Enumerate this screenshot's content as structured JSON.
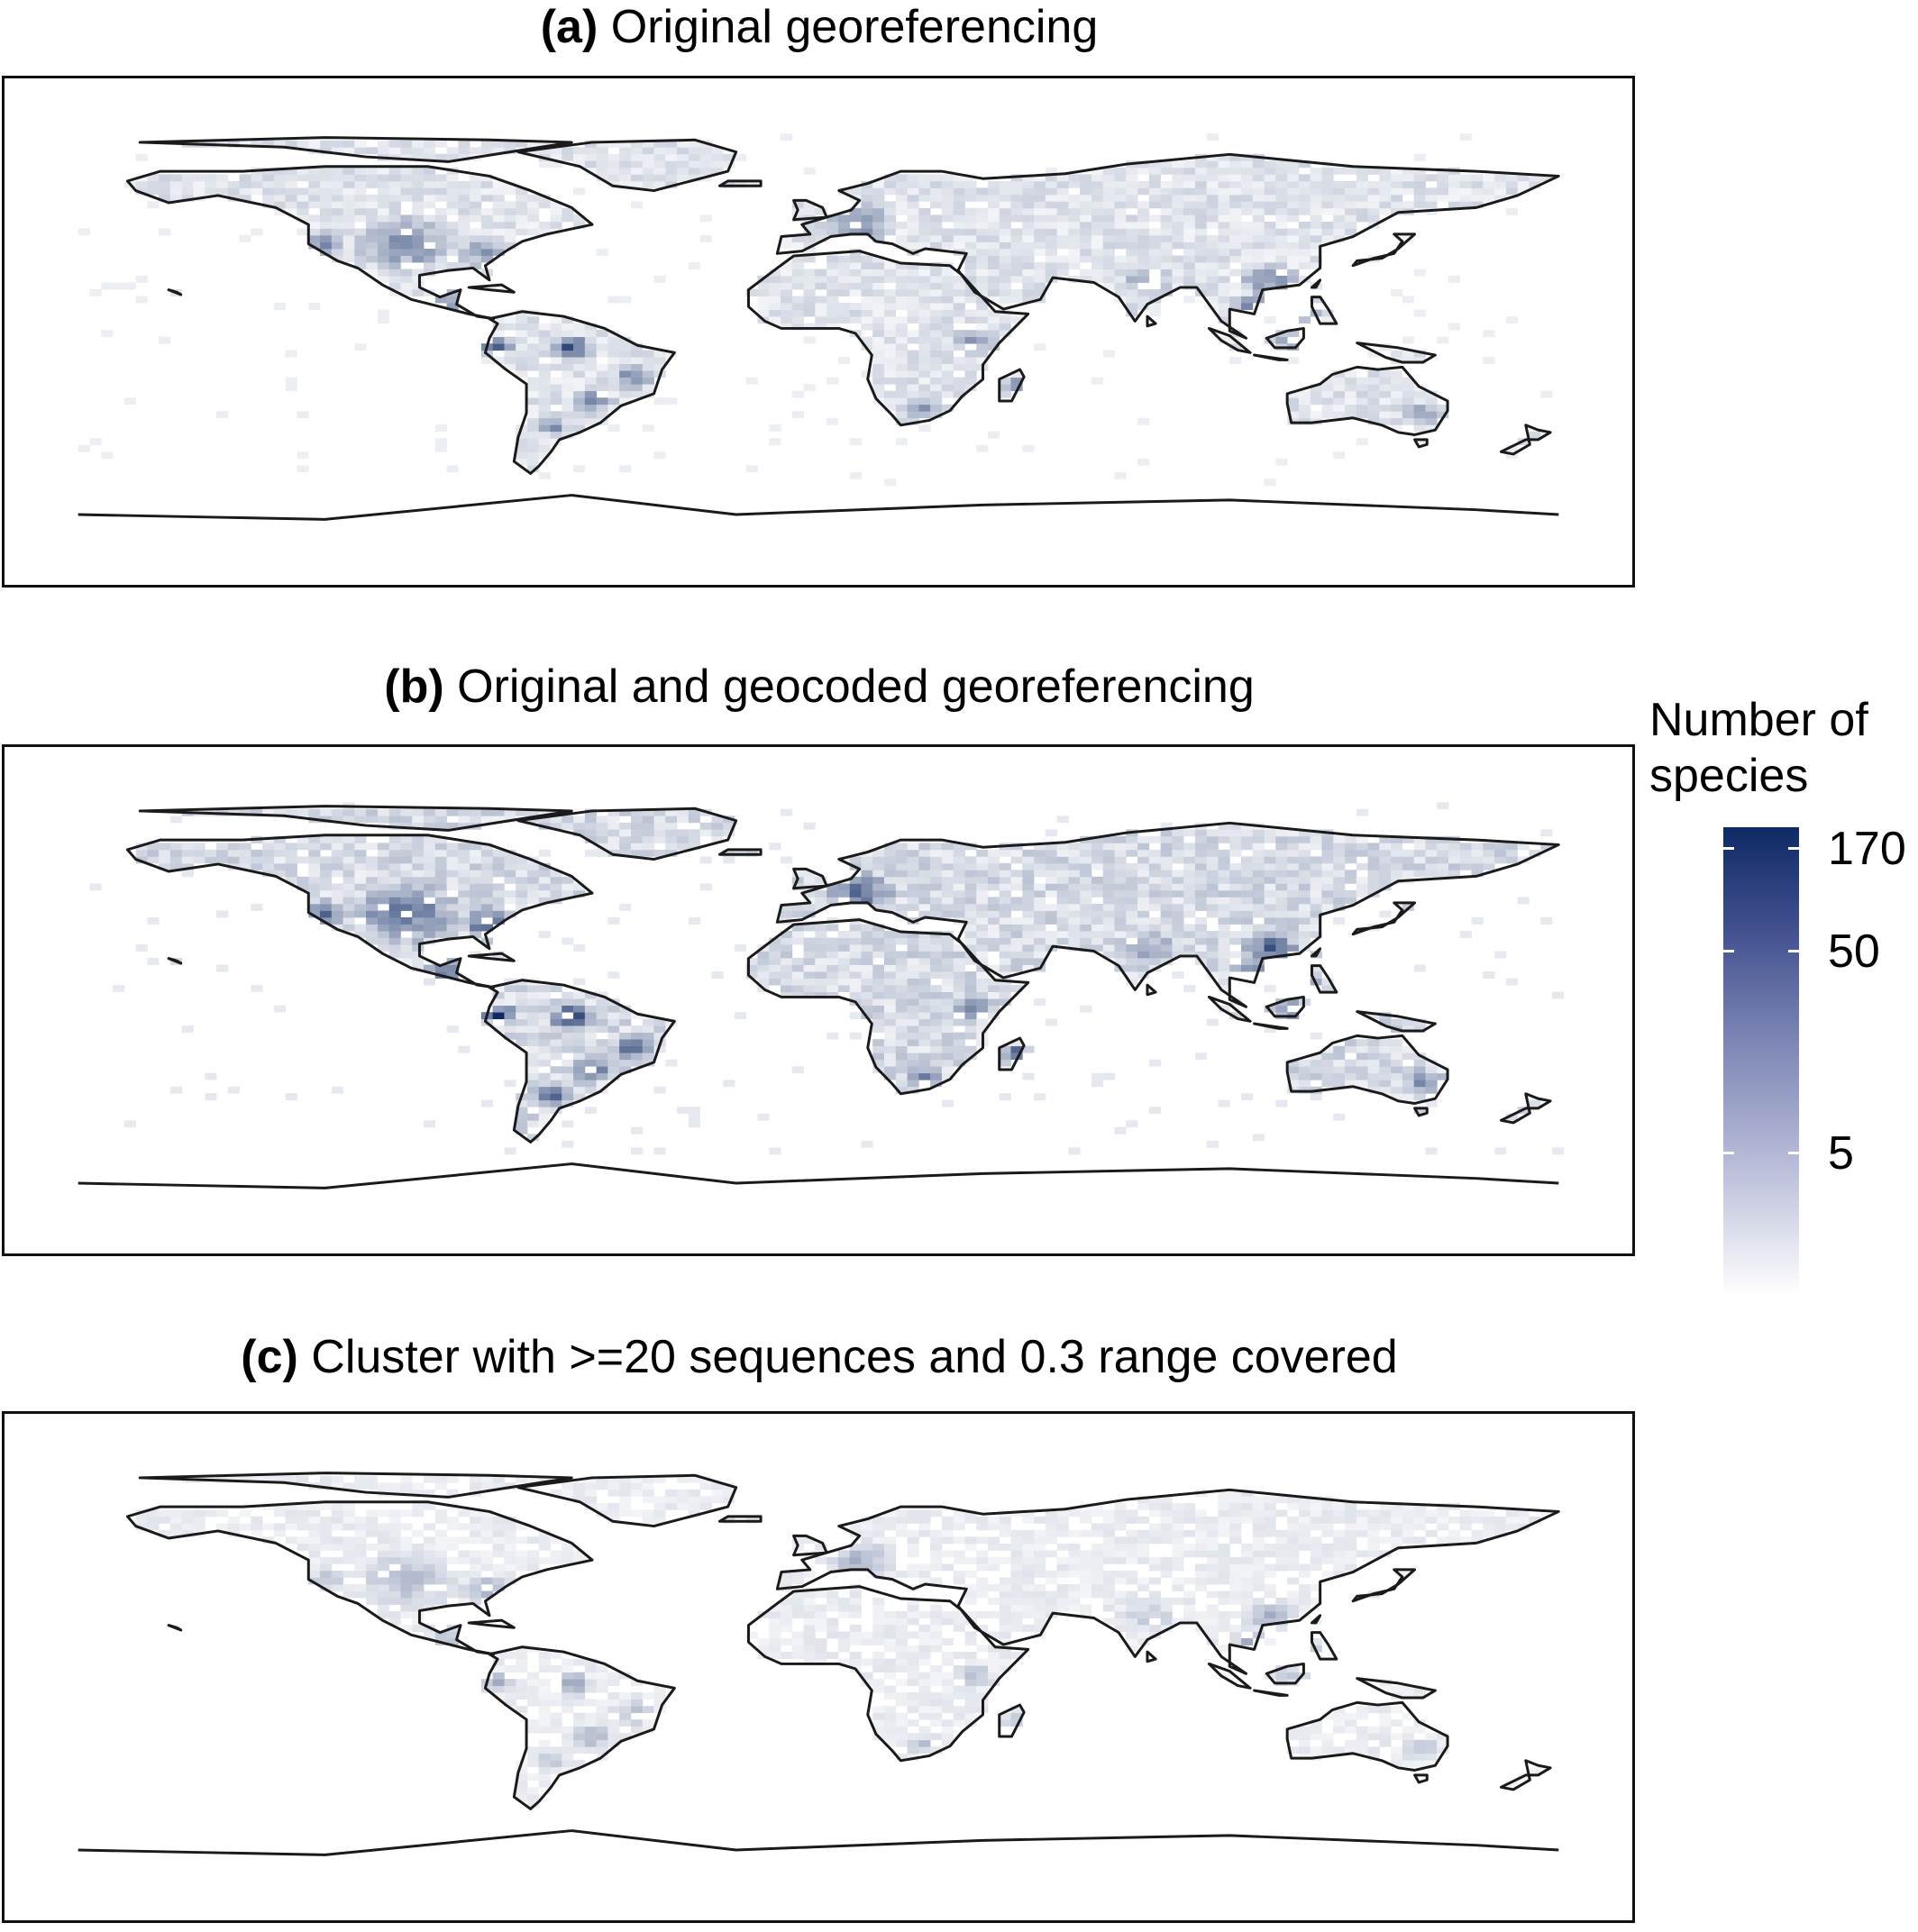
{
  "panels": [
    {
      "tag": "(a)",
      "title": "Original georeferencing",
      "intensity": 1.0
    },
    {
      "tag": "(b)",
      "title": "Original and geocoded georeferencing",
      "intensity": 1.3
    },
    {
      "tag": "(c)",
      "title": "Cluster with >=20 sequences and 0.3 range covered",
      "intensity": 0.6
    }
  ],
  "legend": {
    "title_line1": "Number of",
    "title_line2": "species",
    "ticks": [
      "170",
      "50",
      "5"
    ]
  },
  "colors": {
    "low": "#ffffff",
    "high": "#0e2a64",
    "coastline": "#1a1a1a"
  }
}
